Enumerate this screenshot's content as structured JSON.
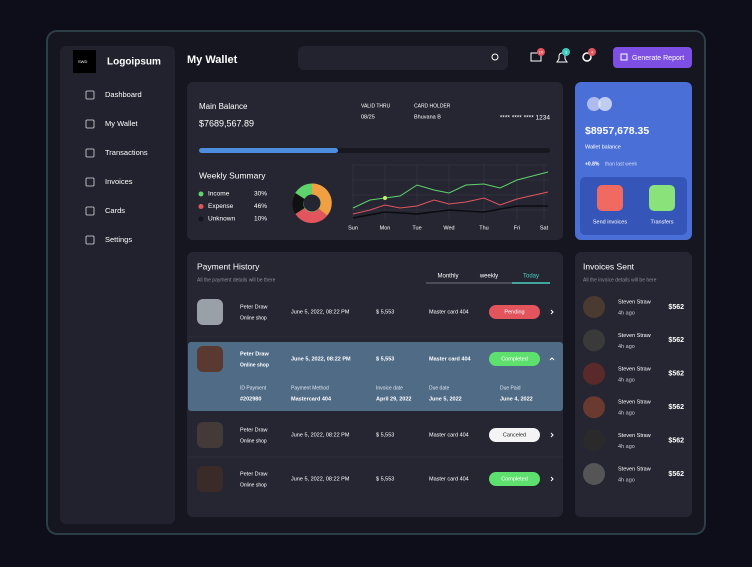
{
  "sidebar": {
    "logo_mark": "SWD",
    "logo": "Logoipsum",
    "nav": [
      "Dashboard",
      "My Wallet",
      "Transactions",
      "Invoices",
      "Cards",
      "Settings"
    ]
  },
  "header": {
    "title": "My Wallet",
    "badges": [
      "10",
      "3",
      "4"
    ],
    "button": "Generate Report"
  },
  "balance": {
    "label": "Main Balance",
    "amount": "$7689,567.89",
    "valid_label": "VALID THRU",
    "valid": "08/25",
    "holder_label": "CARD HOLDER",
    "holder": "Bhuvana B",
    "card": "**** **** **** 1234"
  },
  "weekly": {
    "title": "Weekly Summary",
    "legend": [
      {
        "label": "Income",
        "value": "30%",
        "color": "#5fd36b"
      },
      {
        "label": "Expense",
        "value": "46%",
        "color": "#e2555d"
      },
      {
        "label": "Unknown",
        "value": "10%",
        "color": "#14151c"
      }
    ],
    "days": [
      "Sun",
      "Mon",
      "Tue",
      "Wed",
      "Thu",
      "Fri",
      "Sat"
    ]
  },
  "wallet": {
    "amount": "$8957,678.35",
    "label": "Wallet balance",
    "change": "+0.8%",
    "change_note": "than last week",
    "actions": [
      "Send invoices",
      "Transfers"
    ]
  },
  "payments": {
    "title": "Payment History",
    "subtitle": "All the payment details will be there",
    "tabs": [
      "Monthly",
      "weekly",
      "Today"
    ],
    "rows": [
      {
        "name": "Peter Draw",
        "shop": "Online shop",
        "date": "June 5, 2022, 08:22 PM",
        "amount": "$ 5,553",
        "card": "Master card 404",
        "status": "Pending",
        "status_color": "#e2555d"
      },
      {
        "name": "Peter Draw",
        "shop": "Online shop",
        "date": "June 5, 2022, 08:22 PM",
        "amount": "$ 5,553",
        "card": "Master card 404",
        "status": "Completed",
        "status_color": "#5ee06e"
      },
      {
        "name": "Peter Draw",
        "shop": "Online shop",
        "date": "June 5, 2022, 08:22 PM",
        "amount": "$ 5,553",
        "card": "Master card 404",
        "status": "Canceled",
        "status_color": "#f4f4f4"
      },
      {
        "name": "Peter Draw",
        "shop": "Online shop",
        "date": "June 5, 2022, 08:22 PM",
        "amount": "$ 5,553",
        "card": "Master card 404",
        "status": "Completed",
        "status_color": "#5ee06e"
      }
    ],
    "details": {
      "labels": [
        "ID Payment",
        "Payment Method",
        "Invoice date",
        "Due date",
        "Due Paid"
      ],
      "values": [
        "#202980",
        "Mastercard 404",
        "April 29, 2022",
        "June 5, 2022",
        "June 4, 2022"
      ]
    }
  },
  "invoices": {
    "title": "Invoices Sent",
    "subtitle": "All the invoice details will be here",
    "rows": [
      {
        "name": "Steven Straw",
        "time": "4h ago",
        "amount": "$562"
      },
      {
        "name": "Steven Straw",
        "time": "4h ago",
        "amount": "$562"
      },
      {
        "name": "Steven Straw",
        "time": "4h ago",
        "amount": "$562"
      },
      {
        "name": "Steven Straw",
        "time": "4h ago",
        "amount": "$562"
      },
      {
        "name": "Steven Straw",
        "time": "4h ago",
        "amount": "$562"
      },
      {
        "name": "Steven Straw",
        "time": "4h ago",
        "amount": "$562"
      }
    ]
  }
}
